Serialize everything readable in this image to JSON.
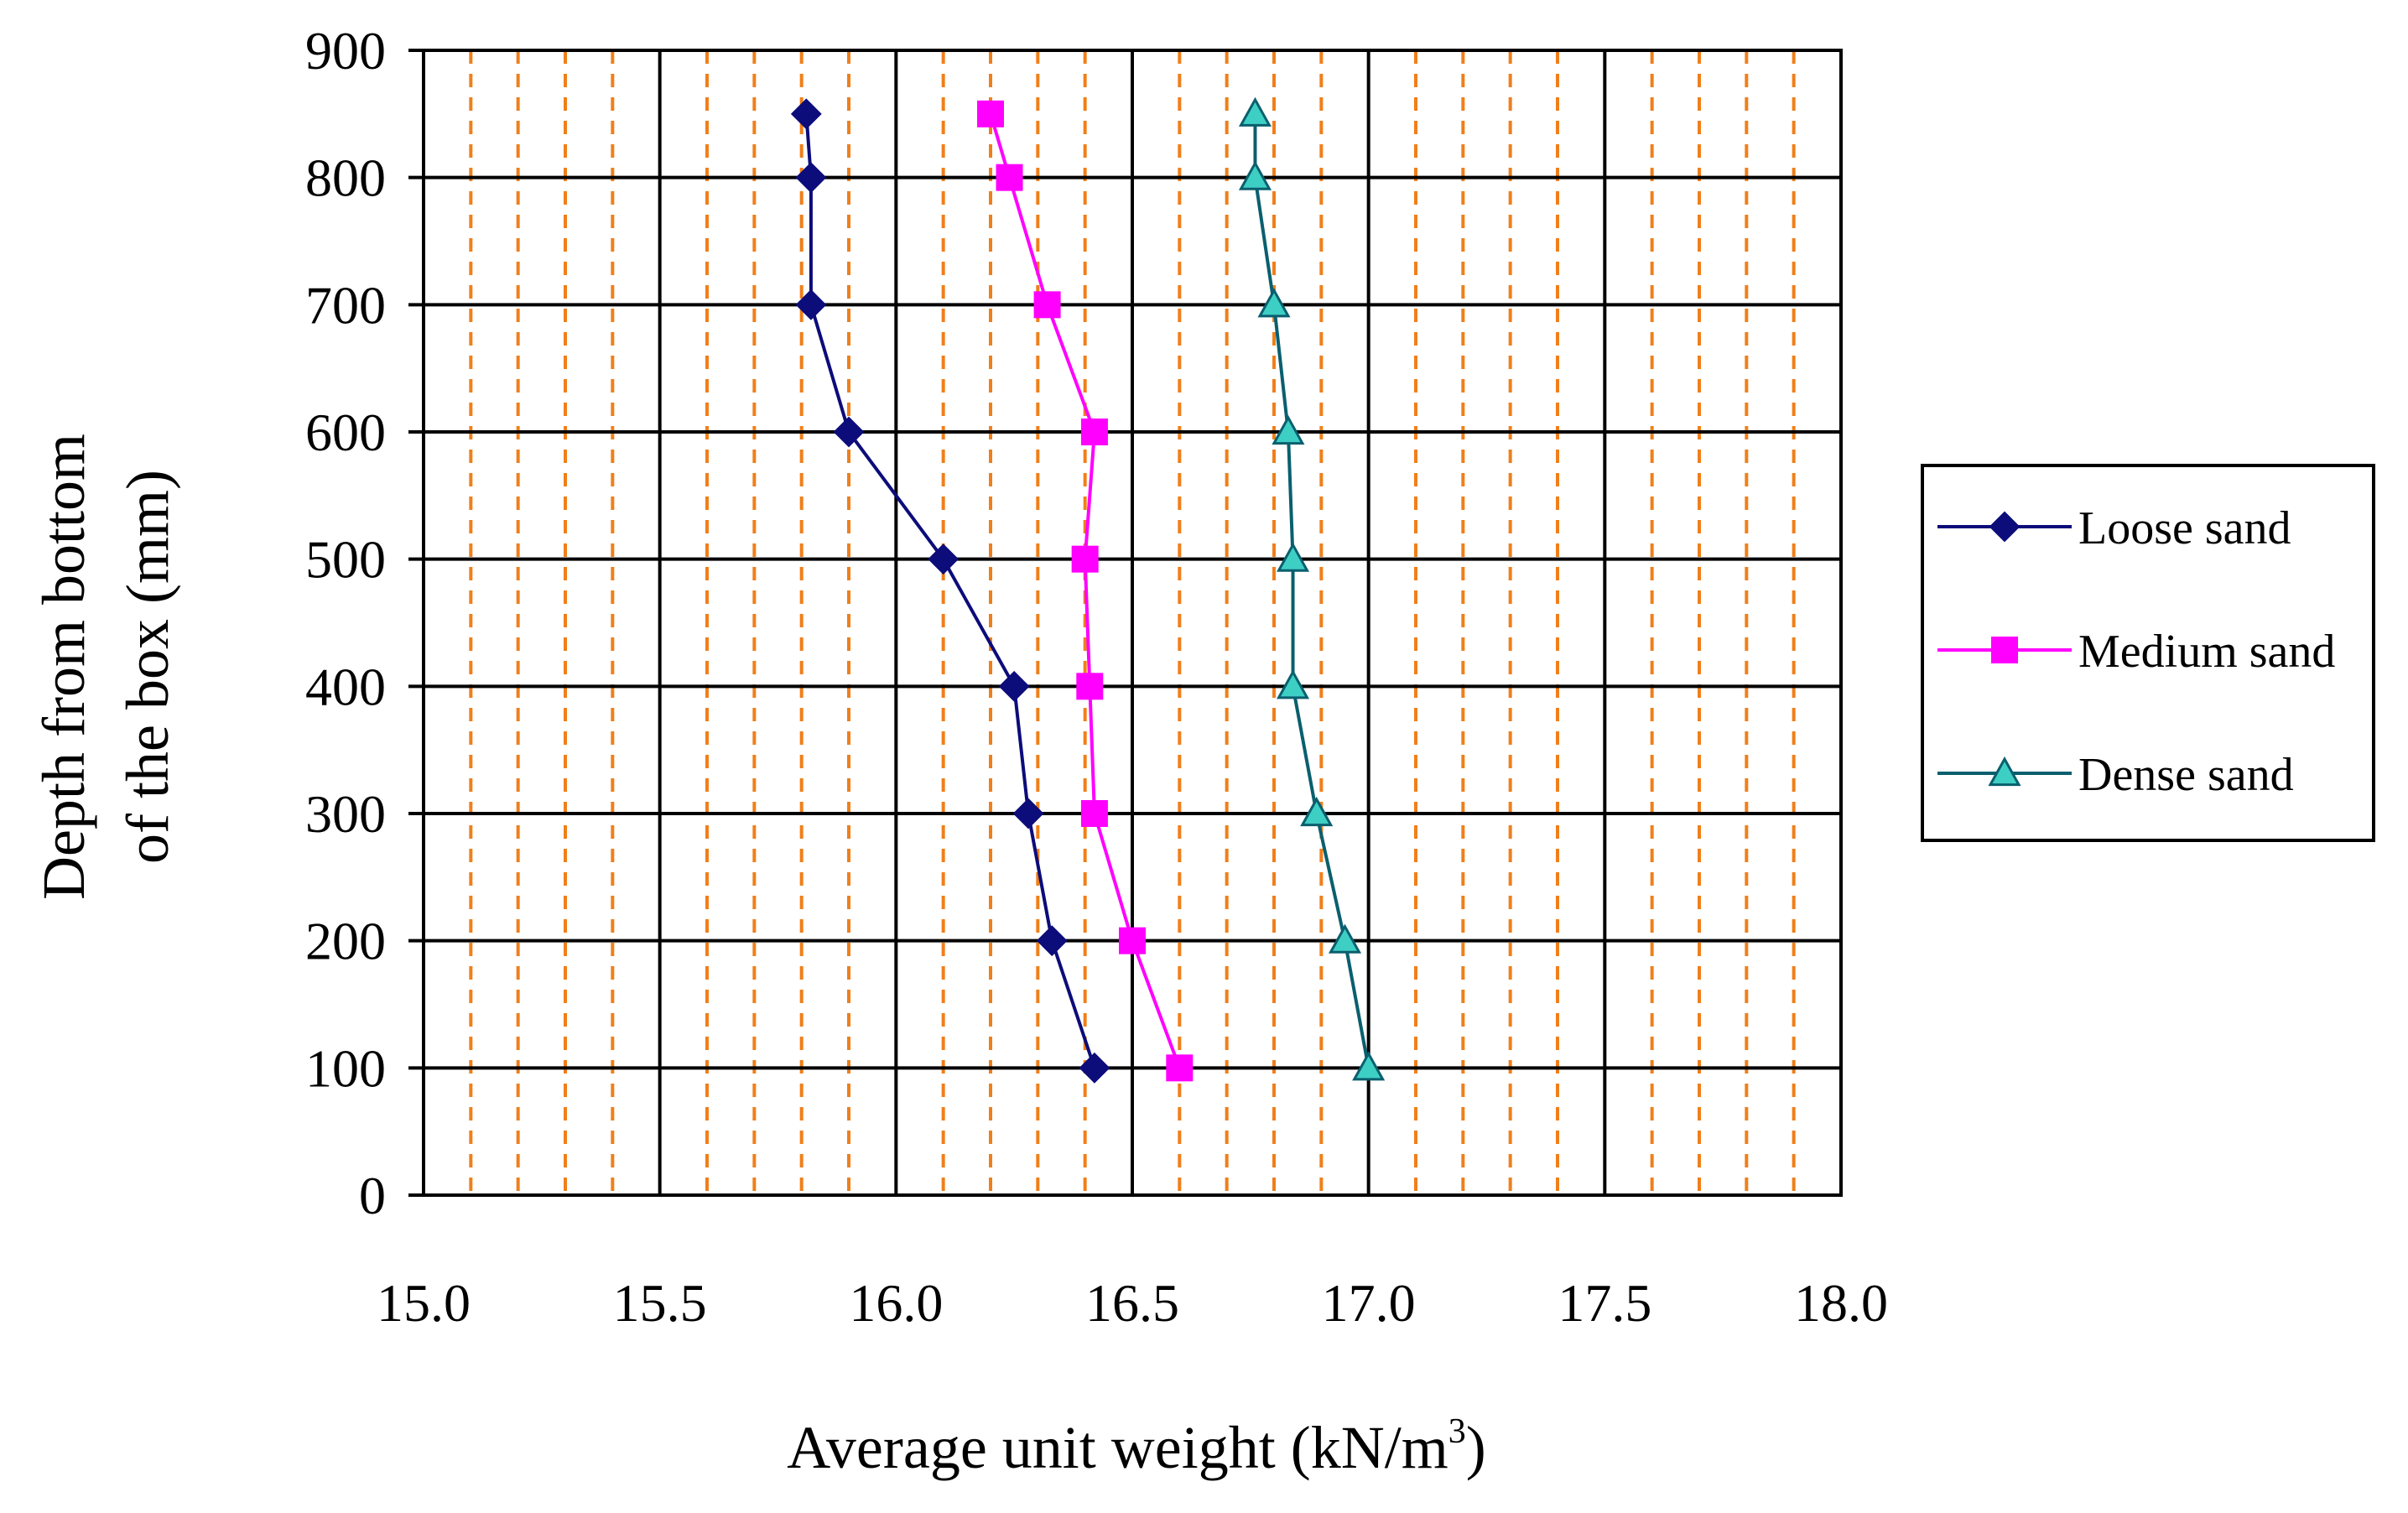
{
  "chart_data": {
    "type": "line",
    "title": "",
    "xlabel": "Average unit weight (kN/m",
    "xlabel_superscript": "3",
    "xlabel_suffix": ")",
    "ylabel_line1": "Depth from bottom",
    "ylabel_line2": "of the box (mm)",
    "xlim": [
      15.0,
      18.0
    ],
    "ylim": [
      0,
      900
    ],
    "x_ticks": [
      "15.0",
      "15.5",
      "16.0",
      "16.5",
      "17.0",
      "17.5",
      "18.0"
    ],
    "y_ticks": [
      "0",
      "100",
      "200",
      "300",
      "400",
      "500",
      "600",
      "700",
      "800",
      "900"
    ],
    "grid": {
      "major": true,
      "minor_x_step": 0.1,
      "major_color": "#000000",
      "minor_color": "#f07f1a"
    },
    "legend_position": "right",
    "series": [
      {
        "name": "Loose sand",
        "color": "#0c0c7a",
        "marker": "diamond",
        "points": [
          {
            "depth": 100,
            "weight": 16.42
          },
          {
            "depth": 200,
            "weight": 16.33
          },
          {
            "depth": 300,
            "weight": 16.28
          },
          {
            "depth": 400,
            "weight": 16.25
          },
          {
            "depth": 500,
            "weight": 16.1
          },
          {
            "depth": 600,
            "weight": 15.9
          },
          {
            "depth": 700,
            "weight": 15.82
          },
          {
            "depth": 800,
            "weight": 15.82
          },
          {
            "depth": 850,
            "weight": 15.81
          }
        ]
      },
      {
        "name": "Medium sand",
        "color": "#ff00ff",
        "marker": "square",
        "points": [
          {
            "depth": 100,
            "weight": 16.6
          },
          {
            "depth": 200,
            "weight": 16.5
          },
          {
            "depth": 300,
            "weight": 16.42
          },
          {
            "depth": 400,
            "weight": 16.41
          },
          {
            "depth": 500,
            "weight": 16.4
          },
          {
            "depth": 600,
            "weight": 16.42
          },
          {
            "depth": 700,
            "weight": 16.32
          },
          {
            "depth": 800,
            "weight": 16.24
          },
          {
            "depth": 850,
            "weight": 16.2
          }
        ]
      },
      {
        "name": "Dense sand",
        "color": "#0a5f6e",
        "marker_fill": "#3ecfc4",
        "marker": "triangle",
        "points": [
          {
            "depth": 100,
            "weight": 17.0
          },
          {
            "depth": 200,
            "weight": 16.95
          },
          {
            "depth": 300,
            "weight": 16.89
          },
          {
            "depth": 400,
            "weight": 16.84
          },
          {
            "depth": 500,
            "weight": 16.84
          },
          {
            "depth": 600,
            "weight": 16.83
          },
          {
            "depth": 700,
            "weight": 16.8
          },
          {
            "depth": 800,
            "weight": 16.76
          },
          {
            "depth": 850,
            "weight": 16.76
          }
        ]
      }
    ]
  }
}
